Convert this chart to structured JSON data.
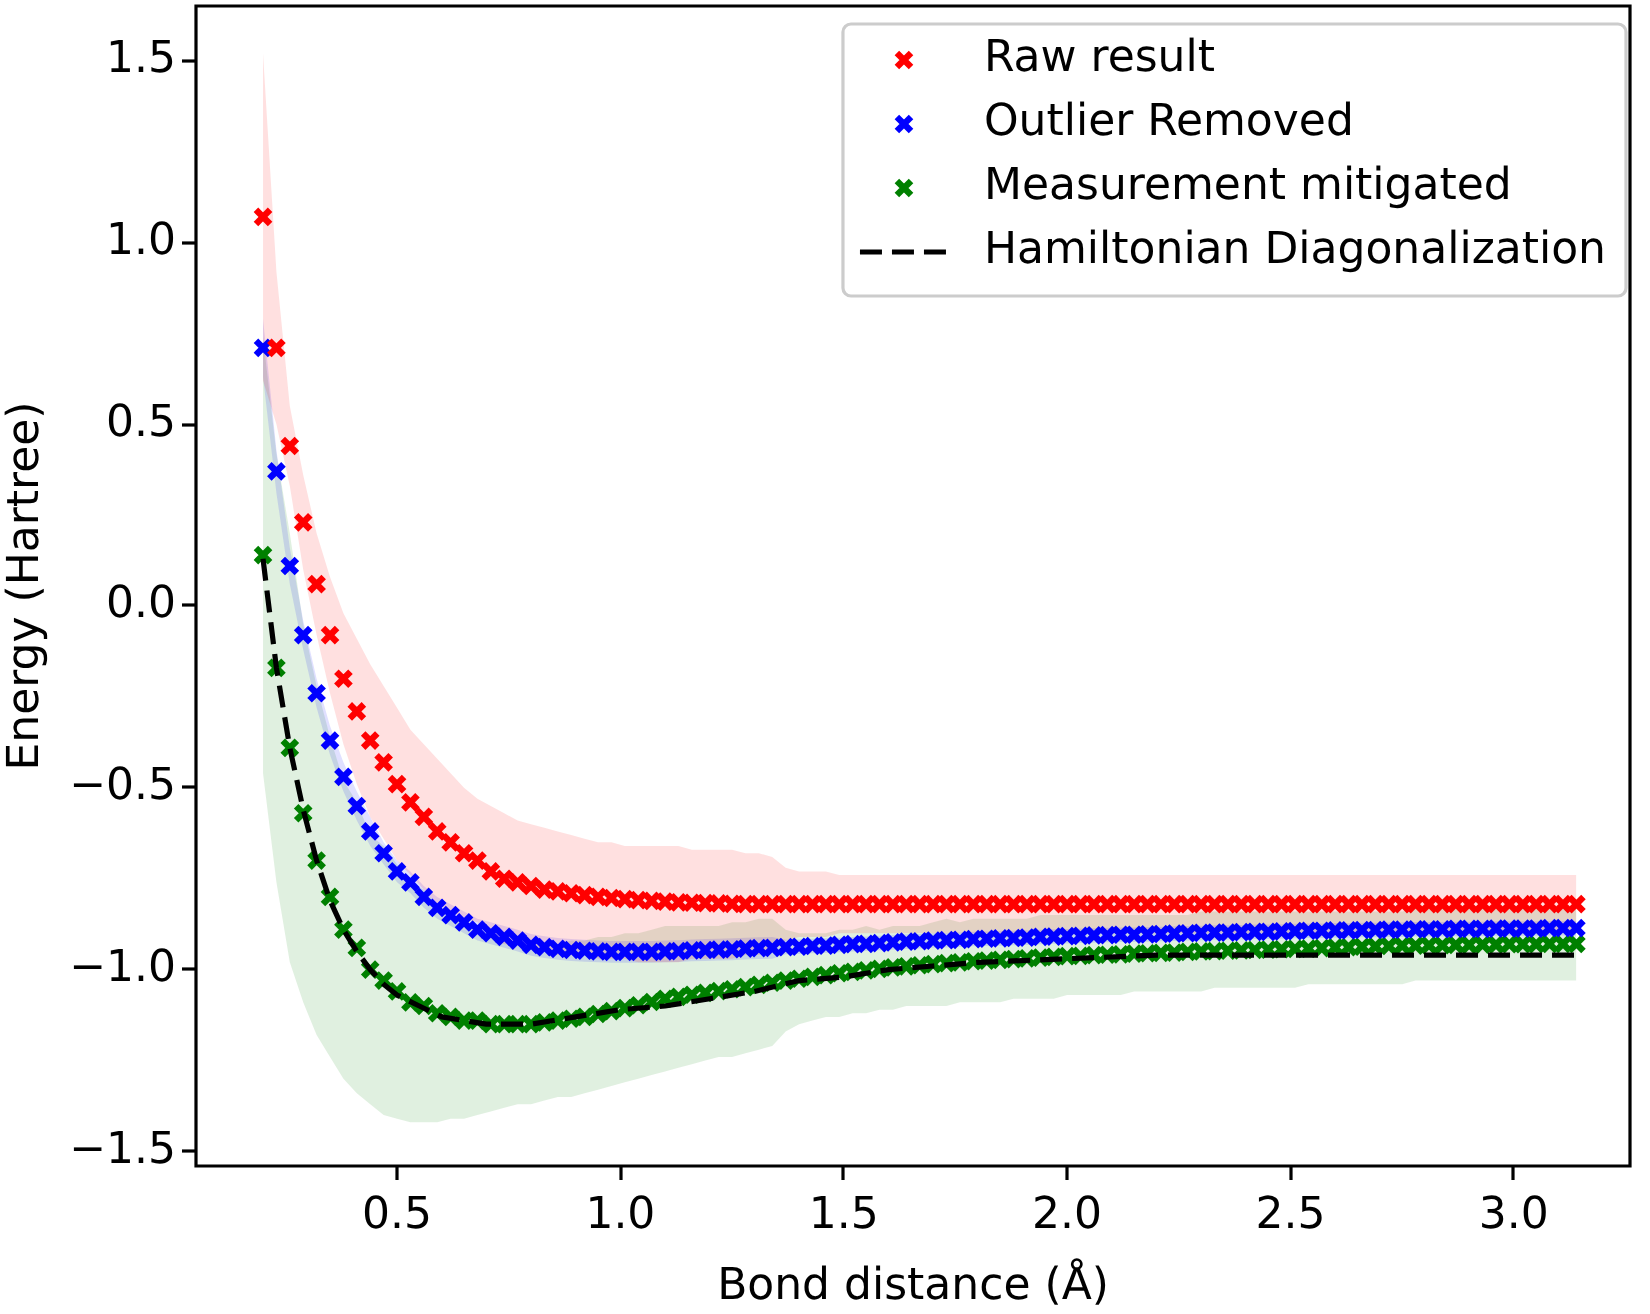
{
  "chart_data": {
    "type": "scatter",
    "xlabel": "Bond distance (Å)",
    "ylabel": "Energy (Hartree)",
    "xlim": [
      0.05,
      3.26
    ],
    "ylim": [
      -1.54,
      1.65
    ],
    "xticks": [
      0.5,
      {
        "value": 1,
        "label": "1.0"
      },
      1.5,
      {
        "value": 2,
        "label": "2.0"
      },
      2.5,
      {
        "value": 3,
        "label": "3.0"
      }
    ],
    "yticks": [
      {
        "value": -1.5,
        "label": "−1.5"
      },
      {
        "value": -1,
        "label": "−1.0"
      },
      {
        "value": -0.5,
        "label": "−0.5"
      },
      {
        "value": 0,
        "label": "0.0"
      },
      0.5,
      {
        "value": 1,
        "label": "1.0"
      },
      1.5
    ],
    "legend": "top right",
    "marker": "cross",
    "x": [
      0.2,
      0.23,
      0.26,
      0.29,
      0.32,
      0.35,
      0.38,
      0.41,
      0.44,
      0.47,
      0.5,
      0.53,
      0.56,
      0.59,
      0.62,
      0.65,
      0.68,
      0.71,
      0.74,
      0.77,
      0.8,
      0.83,
      0.86,
      0.89,
      0.92,
      0.95,
      0.98,
      1.01,
      1.04,
      1.07,
      1.1,
      1.13,
      1.16,
      1.19,
      1.22,
      1.25,
      1.28,
      1.31,
      1.34,
      1.37,
      1.4,
      1.43,
      1.46,
      1.49,
      1.52,
      1.55,
      1.58,
      1.61,
      1.64,
      1.67,
      1.7,
      1.73,
      1.76,
      1.79,
      1.82,
      1.85,
      1.88,
      1.91,
      1.94,
      1.97,
      2.0,
      2.03,
      2.06,
      2.09,
      2.12,
      2.15,
      2.18,
      2.21,
      2.24,
      2.27,
      2.3,
      2.33,
      2.36,
      2.39,
      2.42,
      2.45,
      2.48,
      2.51,
      2.54,
      2.57,
      2.6,
      2.63,
      2.66,
      2.69,
      2.72,
      2.75,
      2.78,
      2.81,
      2.84,
      2.87,
      2.9,
      2.93,
      2.96,
      2.99,
      3.02,
      3.05,
      3.08,
      3.11,
      3.14
    ],
    "series": [
      {
        "name": "Raw result",
        "color": "#ff0000",
        "values": [
          1.07,
          0.71,
          0.44,
          0.23,
          0.06,
          -0.08,
          -0.2,
          -0.29,
          -0.37,
          -0.43,
          -0.49,
          -0.54,
          -0.58,
          -0.62,
          -0.65,
          -0.68,
          -0.7,
          -0.73,
          -0.75,
          -0.76,
          -0.77,
          -0.78,
          -0.785,
          -0.79,
          -0.795,
          -0.8,
          -0.803,
          -0.806,
          -0.809,
          -0.811,
          -0.813,
          -0.815,
          -0.816,
          -0.817,
          -0.818,
          -0.819,
          -0.82,
          -0.82,
          -0.82,
          -0.82,
          -0.82,
          -0.82,
          -0.82,
          -0.82,
          -0.82,
          -0.82,
          -0.82,
          -0.82,
          -0.82,
          -0.82,
          -0.82,
          -0.82,
          -0.82,
          -0.82,
          -0.82,
          -0.82,
          -0.82,
          -0.82,
          -0.82,
          -0.82,
          -0.82,
          -0.82,
          -0.82,
          -0.82,
          -0.82,
          -0.82,
          -0.82,
          -0.82,
          -0.82,
          -0.82,
          -0.82,
          -0.82,
          -0.82,
          -0.82,
          -0.82,
          -0.82,
          -0.82,
          -0.82,
          -0.82,
          -0.82,
          -0.82,
          -0.82,
          -0.82,
          -0.82,
          -0.82,
          -0.82,
          -0.82,
          -0.82,
          -0.82,
          -0.82,
          -0.82,
          -0.82,
          -0.82,
          -0.82,
          -0.82,
          -0.82,
          -0.82,
          -0.82,
          -0.82
        ],
        "lower": [
          0.62,
          0.5,
          0.33,
          0.1,
          -0.08,
          -0.24,
          -0.38,
          -0.49,
          -0.58,
          -0.64,
          -0.7,
          -0.74,
          -0.78,
          -0.82,
          -0.84,
          -0.86,
          -0.87,
          -0.91,
          -0.93,
          -0.93,
          -0.94,
          -0.95,
          -0.96,
          -0.96,
          -0.96,
          -0.97,
          -0.97,
          -0.97,
          -0.98,
          -0.98,
          -0.98,
          -0.98,
          -0.97,
          -0.97,
          -0.97,
          -0.97,
          -0.96,
          -0.96,
          -0.95,
          -0.92,
          -0.91,
          -0.91,
          -0.91,
          -0.9,
          -0.9,
          -0.9,
          -0.9,
          -0.9,
          -0.9,
          -0.9,
          -0.9,
          -0.9,
          -0.9,
          -0.9,
          -0.9,
          -0.9,
          -0.9,
          -0.9,
          -0.9,
          -0.9,
          -0.9,
          -0.9,
          -0.9,
          -0.9,
          -0.9,
          -0.9,
          -0.9,
          -0.9,
          -0.9,
          -0.9,
          -0.9,
          -0.9,
          -0.9,
          -0.9,
          -0.9,
          -0.9,
          -0.9,
          -0.9,
          -0.9,
          -0.9,
          -0.9,
          -0.9,
          -0.9,
          -0.9,
          -0.9,
          -0.9,
          -0.9,
          -0.9,
          -0.9,
          -0.9,
          -0.9,
          -0.9,
          -0.9,
          -0.9,
          -0.9,
          -0.9,
          -0.9,
          -0.9,
          -0.9
        ],
        "upper": [
          1.52,
          0.92,
          0.55,
          0.36,
          0.2,
          0.08,
          -0.02,
          -0.09,
          -0.16,
          -0.22,
          -0.28,
          -0.34,
          -0.38,
          -0.42,
          -0.46,
          -0.5,
          -0.53,
          -0.55,
          -0.57,
          -0.59,
          -0.6,
          -0.61,
          -0.62,
          -0.63,
          -0.64,
          -0.65,
          -0.65,
          -0.66,
          -0.66,
          -0.66,
          -0.66,
          -0.66,
          -0.67,
          -0.67,
          -0.67,
          -0.67,
          -0.68,
          -0.68,
          -0.69,
          -0.72,
          -0.73,
          -0.73,
          -0.73,
          -0.74,
          -0.74,
          -0.74,
          -0.74,
          -0.74,
          -0.74,
          -0.74,
          -0.74,
          -0.74,
          -0.74,
          -0.74,
          -0.74,
          -0.74,
          -0.74,
          -0.74,
          -0.74,
          -0.74,
          -0.74,
          -0.74,
          -0.74,
          -0.74,
          -0.74,
          -0.74,
          -0.74,
          -0.74,
          -0.74,
          -0.74,
          -0.74,
          -0.74,
          -0.74,
          -0.74,
          -0.74,
          -0.74,
          -0.74,
          -0.74,
          -0.74,
          -0.74,
          -0.74,
          -0.74,
          -0.74,
          -0.74,
          -0.74,
          -0.74,
          -0.74,
          -0.74,
          -0.74,
          -0.74,
          -0.74,
          -0.74,
          -0.74,
          -0.74,
          -0.74,
          -0.74,
          -0.74,
          -0.74,
          -0.74
        ]
      },
      {
        "name": "Outlier Removed",
        "color": "#0000ff",
        "values": [
          0.71,
          0.37,
          0.11,
          -0.08,
          -0.24,
          -0.37,
          -0.47,
          -0.55,
          -0.62,
          -0.68,
          -0.73,
          -0.76,
          -0.8,
          -0.83,
          -0.85,
          -0.87,
          -0.89,
          -0.9,
          -0.91,
          -0.92,
          -0.932,
          -0.938,
          -0.943,
          -0.946,
          -0.948,
          -0.95,
          -0.951,
          -0.951,
          -0.951,
          -0.951,
          -0.95,
          -0.949,
          -0.947,
          -0.946,
          -0.945,
          -0.944,
          -0.942,
          -0.941,
          -0.94,
          -0.938,
          -0.937,
          -0.935,
          -0.934,
          -0.932,
          -0.93,
          -0.929,
          -0.927,
          -0.925,
          -0.923,
          -0.922,
          -0.92,
          -0.919,
          -0.918,
          -0.916,
          -0.915,
          -0.914,
          -0.913,
          -0.912,
          -0.91,
          -0.909,
          -0.908,
          -0.907,
          -0.906,
          -0.905,
          -0.904,
          -0.904,
          -0.903,
          -0.902,
          -0.901,
          -0.9,
          -0.899,
          -0.898,
          -0.898,
          -0.897,
          -0.896,
          -0.896,
          -0.895,
          -0.894,
          -0.893,
          -0.893,
          -0.892,
          -0.892,
          -0.891,
          -0.891,
          -0.89,
          -0.89,
          -0.889,
          -0.889,
          -0.889,
          -0.888,
          -0.888,
          -0.888,
          -0.887,
          -0.887,
          -0.887,
          -0.887,
          -0.886,
          -0.886,
          -0.886
        ],
        "lower": [
          0.63,
          0.31,
          0.06,
          -0.12,
          -0.28,
          -0.41,
          -0.51,
          -0.59,
          -0.66,
          -0.71,
          -0.76,
          -0.79,
          -0.83,
          -0.86,
          -0.88,
          -0.9,
          -0.92,
          -0.93,
          -0.94,
          -0.95,
          -0.962,
          -0.968,
          -0.973,
          -0.976,
          -0.978,
          -0.98,
          -0.981,
          -0.981,
          -0.981,
          -0.981,
          -0.98,
          -0.979,
          -0.977,
          -0.976,
          -0.975,
          -0.974,
          -0.972,
          -0.971,
          -0.97,
          -0.958,
          -0.957,
          -0.955,
          -0.954,
          -0.952,
          -0.95,
          -0.949,
          -0.947,
          -0.945,
          -0.943,
          -0.942,
          -0.94,
          -0.939,
          -0.938,
          -0.936,
          -0.935,
          -0.934,
          -0.933,
          -0.932,
          -0.93,
          -0.929,
          -0.928,
          -0.927,
          -0.926,
          -0.925,
          -0.924,
          -0.924,
          -0.923,
          -0.922,
          -0.921,
          -0.92,
          -0.919,
          -0.918,
          -0.918,
          -0.917,
          -0.916,
          -0.916,
          -0.915,
          -0.914,
          -0.913,
          -0.913,
          -0.912,
          -0.912,
          -0.911,
          -0.911,
          -0.91,
          -0.91,
          -0.909,
          -0.909,
          -0.909,
          -0.908,
          -0.908,
          -0.908,
          -0.907,
          -0.907,
          -0.907,
          -0.907,
          -0.906,
          -0.906,
          -0.906
        ],
        "upper": [
          0.79,
          0.43,
          0.16,
          -0.04,
          -0.2,
          -0.33,
          -0.43,
          -0.51,
          -0.58,
          -0.65,
          -0.7,
          -0.73,
          -0.77,
          -0.8,
          -0.82,
          -0.84,
          -0.86,
          -0.87,
          -0.88,
          -0.89,
          -0.902,
          -0.908,
          -0.913,
          -0.916,
          -0.918,
          -0.92,
          -0.921,
          -0.921,
          -0.921,
          -0.921,
          -0.92,
          -0.919,
          -0.917,
          -0.916,
          -0.915,
          -0.914,
          -0.912,
          -0.911,
          -0.91,
          -0.918,
          -0.917,
          -0.915,
          -0.914,
          -0.912,
          -0.91,
          -0.909,
          -0.907,
          -0.905,
          -0.903,
          -0.902,
          -0.9,
          -0.899,
          -0.898,
          -0.896,
          -0.895,
          -0.894,
          -0.893,
          -0.892,
          -0.89,
          -0.889,
          -0.888,
          -0.887,
          -0.886,
          -0.885,
          -0.884,
          -0.884,
          -0.883,
          -0.882,
          -0.881,
          -0.88,
          -0.879,
          -0.878,
          -0.878,
          -0.877,
          -0.876,
          -0.876,
          -0.875,
          -0.874,
          -0.873,
          -0.873,
          -0.872,
          -0.872,
          -0.871,
          -0.871,
          -0.87,
          -0.87,
          -0.869,
          -0.869,
          -0.869,
          -0.868,
          -0.868,
          -0.868,
          -0.867,
          -0.867,
          -0.867,
          -0.867,
          -0.866,
          -0.866,
          -0.866
        ]
      },
      {
        "name": "Measurement mitigated",
        "color": "#008000",
        "values": [
          0.14,
          -0.17,
          -0.39,
          -0.57,
          -0.7,
          -0.8,
          -0.89,
          -0.94,
          -1,
          -1.03,
          -1.06,
          -1.09,
          -1.1,
          -1.12,
          -1.13,
          -1.14,
          -1.14,
          -1.15,
          -1.15,
          -1.15,
          -1.15,
          -1.145,
          -1.14,
          -1.135,
          -1.13,
          -1.122,
          -1.114,
          -1.106,
          -1.098,
          -1.089,
          -1.08,
          -1.075,
          -1.069,
          -1.064,
          -1.059,
          -1.054,
          -1.048,
          -1.042,
          -1.036,
          -1.03,
          -1.025,
          -1.02,
          -1.015,
          -1.01,
          -1.006,
          -1.002,
          -0.998,
          -0.994,
          -0.991,
          -0.988,
          -0.985,
          -0.982,
          -0.98,
          -0.977,
          -0.975,
          -0.973,
          -0.971,
          -0.969,
          -0.967,
          -0.965,
          -0.963,
          -0.962,
          -0.96,
          -0.959,
          -0.958,
          -0.956,
          -0.955,
          -0.954,
          -0.953,
          -0.951,
          -0.95,
          -0.949,
          -0.948,
          -0.947,
          -0.946,
          -0.945,
          -0.944,
          -0.943,
          -0.942,
          -0.941,
          -0.939,
          -0.938,
          -0.937,
          -0.936,
          -0.935,
          -0.934,
          -0.934,
          -0.933,
          -0.933,
          -0.932,
          -0.932,
          -0.931,
          -0.931,
          -0.93,
          -0.93,
          -0.93,
          -0.929,
          -0.929,
          -0.929
        ],
        "lower": [
          -0.46,
          -0.76,
          -0.98,
          -1.09,
          -1.18,
          -1.24,
          -1.3,
          -1.34,
          -1.37,
          -1.4,
          -1.41,
          -1.42,
          -1.42,
          -1.42,
          -1.41,
          -1.41,
          -1.4,
          -1.39,
          -1.38,
          -1.37,
          -1.37,
          -1.36,
          -1.35,
          -1.35,
          -1.34,
          -1.33,
          -1.32,
          -1.31,
          -1.3,
          -1.29,
          -1.28,
          -1.27,
          -1.26,
          -1.25,
          -1.24,
          -1.24,
          -1.23,
          -1.22,
          -1.21,
          -1.17,
          -1.15,
          -1.14,
          -1.13,
          -1.13,
          -1.12,
          -1.12,
          -1.11,
          -1.11,
          -1.1,
          -1.1,
          -1.1,
          -1.1,
          -1.09,
          -1.09,
          -1.09,
          -1.09,
          -1.08,
          -1.08,
          -1.08,
          -1.08,
          -1.07,
          -1.07,
          -1.07,
          -1.07,
          -1.07,
          -1.06,
          -1.06,
          -1.06,
          -1.06,
          -1.06,
          -1.06,
          -1.05,
          -1.05,
          -1.05,
          -1.05,
          -1.05,
          -1.05,
          -1.05,
          -1.04,
          -1.04,
          -1.04,
          -1.04,
          -1.04,
          -1.04,
          -1.04,
          -1.04,
          -1.03,
          -1.03,
          -1.03,
          -1.03,
          -1.03,
          -1.03,
          -1.03,
          -1.03,
          -1.03,
          -1.03,
          -1.03,
          -1.03,
          -1.03
        ],
        "upper": [
          0.74,
          0.42,
          0.2,
          -0.05,
          -0.22,
          -0.36,
          -0.48,
          -0.54,
          -0.63,
          -0.66,
          -0.71,
          -0.76,
          -0.78,
          -0.82,
          -0.85,
          -0.87,
          -0.88,
          -0.91,
          -0.92,
          -0.93,
          -0.93,
          -0.93,
          -0.93,
          -0.92,
          -0.92,
          -0.91,
          -0.91,
          -0.9,
          -0.9,
          -0.89,
          -0.88,
          -0.88,
          -0.88,
          -0.88,
          -0.88,
          -0.87,
          -0.87,
          -0.86,
          -0.86,
          -0.89,
          -0.9,
          -0.9,
          -0.9,
          -0.89,
          -0.89,
          -0.88,
          -0.89,
          -0.88,
          -0.88,
          -0.88,
          -0.87,
          -0.86,
          -0.87,
          -0.86,
          -0.86,
          -0.86,
          -0.86,
          -0.86,
          -0.85,
          -0.85,
          -0.85,
          -0.85,
          -0.85,
          -0.85,
          -0.85,
          -0.85,
          -0.85,
          -0.85,
          -0.85,
          -0.85,
          -0.84,
          -0.84,
          -0.84,
          -0.84,
          -0.84,
          -0.84,
          -0.84,
          -0.84,
          -0.84,
          -0.84,
          -0.84,
          -0.84,
          -0.84,
          -0.84,
          -0.84,
          -0.84,
          -0.83,
          -0.83,
          -0.83,
          -0.83,
          -0.83,
          -0.83,
          -0.83,
          -0.83,
          -0.83,
          -0.83,
          -0.83,
          -0.83,
          -0.83
        ]
      },
      {
        "name": "Hamiltonian Diagonalization",
        "color": "#000000",
        "type": "line",
        "line_style": "dashed",
        "marker": "none",
        "x": [
          0.2,
          0.23,
          0.26,
          0.29,
          0.32,
          0.35,
          0.38,
          0.41,
          0.44,
          0.47,
          0.5,
          0.55,
          0.6,
          0.65,
          0.7,
          0.75,
          0.8,
          0.85,
          0.9,
          1.0,
          1.1,
          1.2,
          1.3,
          1.4,
          1.5,
          1.6,
          1.7,
          1.8,
          2.0,
          2.2,
          2.4,
          2.6,
          2.8,
          3.0,
          3.14
        ],
        "values": [
          0.13,
          -0.17,
          -0.39,
          -0.56,
          -0.7,
          -0.81,
          -0.89,
          -0.95,
          -1,
          -1.04,
          -1.07,
          -1.1,
          -1.13,
          -1.14,
          -1.15,
          -1.15,
          -1.15,
          -1.14,
          -1.13,
          -1.11,
          -1.1,
          -1.08,
          -1.06,
          -1.03,
          -1.02,
          -1,
          -0.99,
          -0.98,
          -0.97,
          -0.96,
          -0.96,
          -0.96,
          -0.96,
          -0.96,
          -0.96
        ]
      }
    ]
  }
}
